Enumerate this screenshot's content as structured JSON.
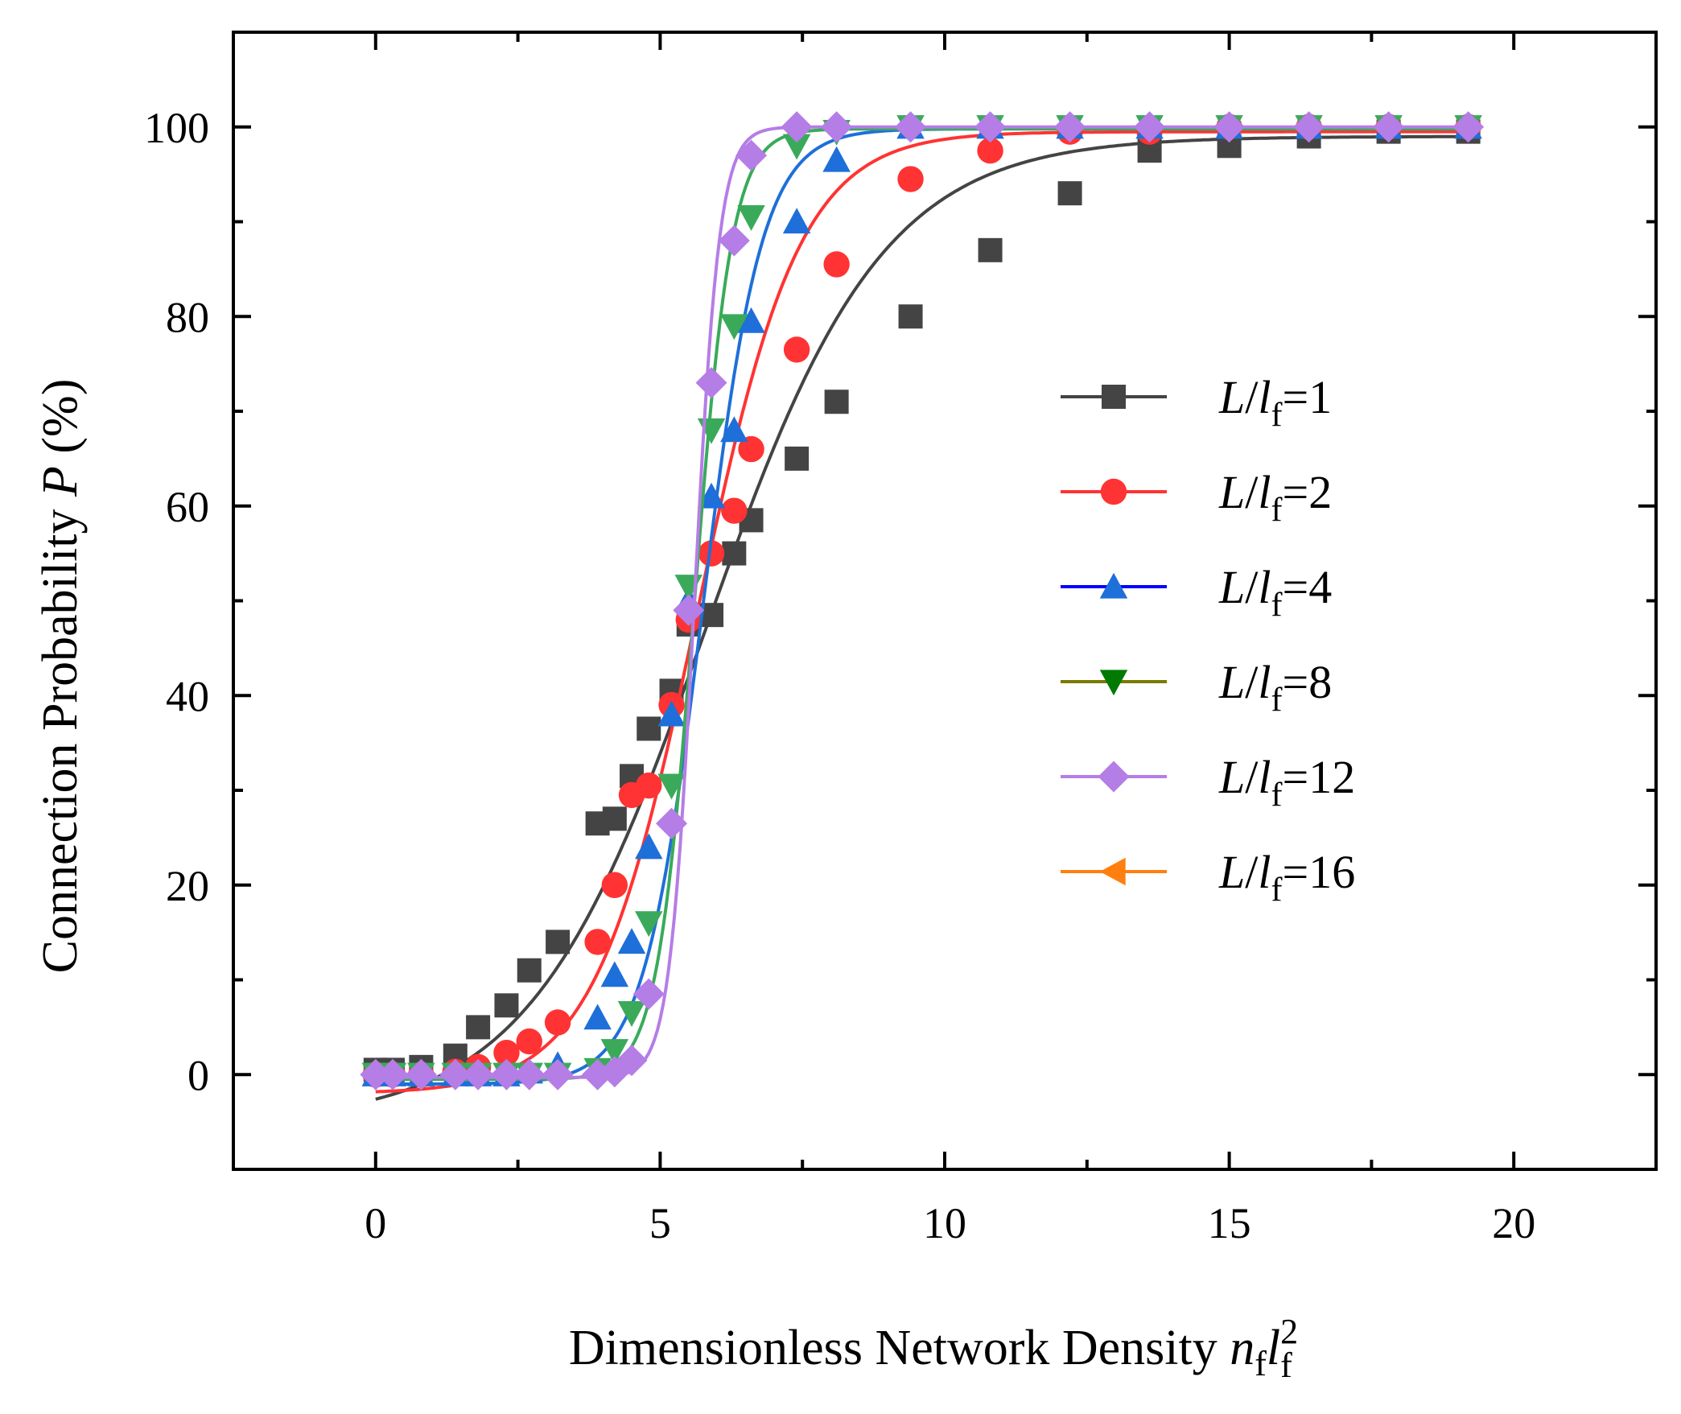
{
  "chart_data": {
    "type": "line",
    "title": "",
    "xlabel": "Dimensionless Network Density",
    "xlabel_math": {
      "n": "n",
      "n_sub": "f",
      "l": "l",
      "l_sub": "f",
      "l_sup": "2"
    },
    "ylabel": "Connection Probability",
    "ylabel_var": "P",
    "ylabel_unit": "(%)",
    "xlim": [
      -2.5,
      22.5
    ],
    "ylim": [
      -10,
      110
    ],
    "xticks": [
      0,
      5,
      10,
      15,
      20
    ],
    "yticks": [
      0,
      20,
      40,
      60,
      80,
      100
    ],
    "grid": false,
    "legend": "center-right",
    "legend_prefix": "L/",
    "legend_var": "l",
    "legend_sub": "f",
    "series": [
      {
        "name": "L/lf=1",
        "ratio": "1",
        "color": "#444444",
        "marker": "square",
        "marker_color": "#444444",
        "x": [
          0,
          0.3,
          0.8,
          1.4,
          1.8,
          2.3,
          2.7,
          3.2,
          3.9,
          4.2,
          4.5,
          4.8,
          5.2,
          5.5,
          5.9,
          6.3,
          6.6,
          7.4,
          8.1,
          9.4,
          10.8,
          12.2,
          13.6,
          15.0,
          16.4,
          17.8,
          19.2
        ],
        "values": [
          0.5,
          0.5,
          0.8,
          2,
          5,
          7.3,
          11,
          14,
          26.5,
          27,
          31.5,
          36.5,
          40.5,
          47.5,
          48.5,
          55,
          58.5,
          65,
          71,
          80,
          87,
          93,
          97.5,
          98,
          99,
          99.5,
          99.5
        ],
        "fit": {
          "model": "boltzmann",
          "A1": -5,
          "A2": 99,
          "x0": 5.8,
          "dx": 1.55
        }
      },
      {
        "name": "L/lf=2",
        "ratio": "2",
        "color": "#ff3333",
        "marker": "circle",
        "marker_color": "#ff3333",
        "x": [
          0,
          0.3,
          0.8,
          1.4,
          1.8,
          2.3,
          2.7,
          3.2,
          3.9,
          4.2,
          4.5,
          4.8,
          5.2,
          5.5,
          5.9,
          6.3,
          6.6,
          7.4,
          8.1,
          9.4,
          10.8,
          12.2,
          13.6,
          15.0,
          16.4,
          17.8,
          19.2
        ],
        "values": [
          0,
          0,
          0,
          0.3,
          0.8,
          2.3,
          3.5,
          5.5,
          14,
          20,
          29.5,
          30.5,
          39,
          48,
          55,
          59.5,
          66,
          76.5,
          85.5,
          94.5,
          97.5,
          99.5,
          99.5,
          100,
          100,
          100,
          100
        ],
        "fit": {
          "model": "boltzmann",
          "A1": -2,
          "A2": 99.5,
          "x0": 5.65,
          "dx": 0.9
        }
      },
      {
        "name": "L/lf=4",
        "ratio": "4",
        "color": "#1e6fd9",
        "marker": "triangle-up",
        "marker_color": "#1e6fd9",
        "legend_color": "#0000ff",
        "x": [
          0,
          0.3,
          0.8,
          1.4,
          1.8,
          2.3,
          2.7,
          3.2,
          3.9,
          4.2,
          4.5,
          4.8,
          5.2,
          5.5,
          5.9,
          6.3,
          6.6,
          7.4,
          8.1,
          9.4,
          10.8,
          12.2,
          13.6,
          15.0,
          16.4,
          17.8,
          19.2
        ],
        "values": [
          0,
          0,
          0,
          0,
          0,
          0,
          0.3,
          1,
          6,
          10.5,
          14,
          24,
          38,
          50,
          61,
          68,
          79.5,
          90,
          96.5,
          100,
          100,
          100,
          100,
          100,
          100,
          100,
          100
        ],
        "fit": {
          "model": "boltzmann",
          "A1": -1,
          "A2": 99.8,
          "x0": 5.75,
          "dx": 0.52
        }
      },
      {
        "name": "L/lf=8",
        "ratio": "8",
        "color": "#3aaa5a",
        "marker": "triangle-down",
        "marker_color": "#3aaa5a",
        "legend_color": "#7a7a00",
        "legend_marker_color": "#007a00",
        "x": [
          0,
          0.3,
          0.8,
          1.4,
          1.8,
          2.3,
          2.7,
          3.2,
          3.9,
          4.2,
          4.5,
          4.8,
          5.2,
          5.5,
          5.9,
          6.3,
          6.6,
          7.4,
          8.1,
          9.4,
          10.8,
          12.2,
          13.6,
          15.0,
          16.4,
          17.8,
          19.2
        ],
        "values": [
          0,
          0,
          0,
          0,
          0,
          0,
          0,
          0,
          0.5,
          2.5,
          6.5,
          16,
          30.5,
          51.5,
          68,
          79,
          90.5,
          98,
          99.5,
          100,
          100,
          100,
          100,
          100,
          100,
          100,
          100
        ],
        "fit": {
          "model": "boltzmann",
          "A1": -0.5,
          "A2": 99.8,
          "x0": 5.6,
          "dx": 0.33
        }
      },
      {
        "name": "L/lf=12",
        "ratio": "12",
        "color": "#b57de6",
        "marker": "diamond",
        "marker_color": "#b57de6",
        "x": [
          0,
          0.3,
          0.8,
          1.4,
          1.8,
          2.3,
          2.7,
          3.2,
          3.9,
          4.2,
          4.5,
          4.8,
          5.2,
          5.5,
          5.9,
          6.3,
          6.6,
          7.4,
          8.1,
          9.4,
          10.8,
          12.2,
          13.6,
          15.0,
          16.4,
          17.8,
          19.2
        ],
        "values": [
          0,
          0,
          0,
          0,
          0,
          0,
          0,
          0,
          0,
          0.3,
          1.5,
          8.5,
          26.5,
          49,
          73,
          88,
          97,
          100,
          100,
          100,
          100,
          100,
          100,
          100,
          100,
          100,
          100
        ],
        "fit": {
          "model": "boltzmann",
          "A1": -0.3,
          "A2": 100,
          "x0": 5.6,
          "dx": 0.22
        }
      },
      {
        "name": "L/lf=16",
        "ratio": "16",
        "color": "#ff7f0e",
        "marker": "triangle-left",
        "marker_color": "#ff7f0e",
        "x": [],
        "values": [],
        "fit": null
      }
    ]
  }
}
